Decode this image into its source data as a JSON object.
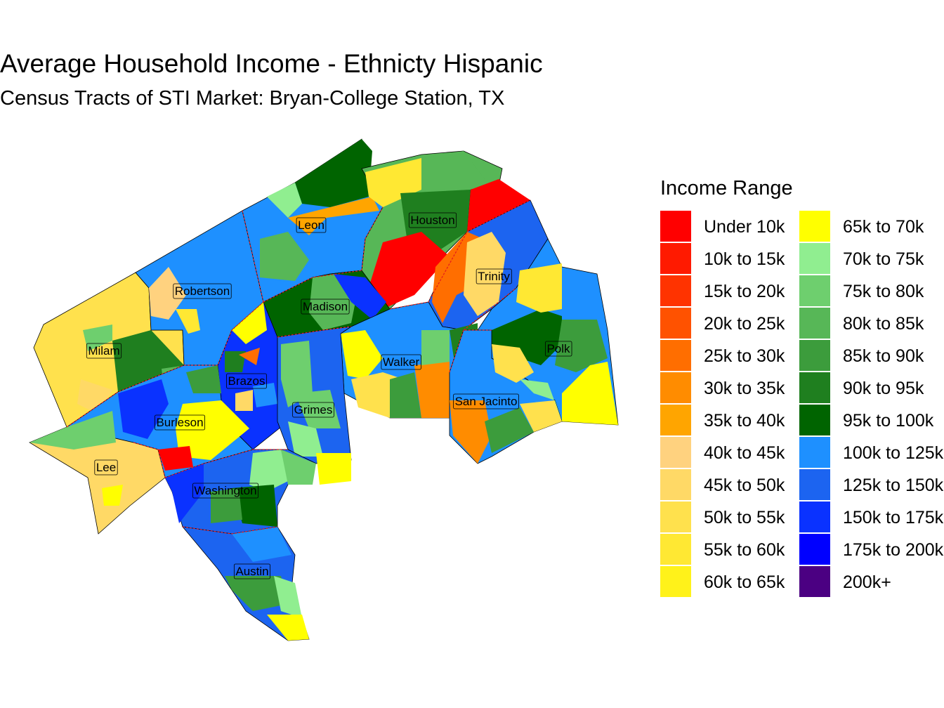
{
  "title": "Average Household Income - Ethnicty Hispanic",
  "subtitle": "Census Tracts of STI Market: Bryan-College Station, TX",
  "legend": {
    "title": "Income Range",
    "items": [
      {
        "label": "Under 10k",
        "color": "#FF0000"
      },
      {
        "label": "10k to 15k",
        "color": "#FF1A00"
      },
      {
        "label": "15k to 20k",
        "color": "#FF3300"
      },
      {
        "label": "20k to 25k",
        "color": "#FF5200"
      },
      {
        "label": "25k to 30k",
        "color": "#FF6E00"
      },
      {
        "label": "30k to 35k",
        "color": "#FF8C00"
      },
      {
        "label": "35k to 40k",
        "color": "#FFA500"
      },
      {
        "label": "40k to 45k",
        "color": "#FFD27F"
      },
      {
        "label": "45k to 50k",
        "color": "#FFD966"
      },
      {
        "label": "50k to 55k",
        "color": "#FFE14D"
      },
      {
        "label": "55k to 60k",
        "color": "#FFE833"
      },
      {
        "label": "60k to 65k",
        "color": "#FFF21A"
      },
      {
        "label": "65k to 70k",
        "color": "#FFFF00"
      },
      {
        "label": "70k to 75k",
        "color": "#90EE90"
      },
      {
        "label": "75k to 80k",
        "color": "#6ECF6E"
      },
      {
        "label": "80k to 85k",
        "color": "#57B757"
      },
      {
        "label": "85k to 90k",
        "color": "#3C9C3C"
      },
      {
        "label": "90k to 95k",
        "color": "#1F7F1F"
      },
      {
        "label": "95k to 100k",
        "color": "#006400"
      },
      {
        "label": "100k to 125k",
        "color": "#1E90FF"
      },
      {
        "label": "125k to 150k",
        "color": "#1C64F0"
      },
      {
        "label": "150k to 175k",
        "color": "#0A32FF"
      },
      {
        "label": "175k to 200k",
        "color": "#0000FF"
      },
      {
        "label": "200k+",
        "color": "#4B0082"
      }
    ]
  },
  "counties": [
    {
      "name": "Leon"
    },
    {
      "name": "Houston"
    },
    {
      "name": "Trinity"
    },
    {
      "name": "Robertson"
    },
    {
      "name": "Madison"
    },
    {
      "name": "Milam"
    },
    {
      "name": "Walker"
    },
    {
      "name": "Polk"
    },
    {
      "name": "Brazos"
    },
    {
      "name": "Grimes"
    },
    {
      "name": "San Jacinto"
    },
    {
      "name": "Burleson"
    },
    {
      "name": "Lee"
    },
    {
      "name": "Washington"
    },
    {
      "name": "Austin"
    }
  ]
}
